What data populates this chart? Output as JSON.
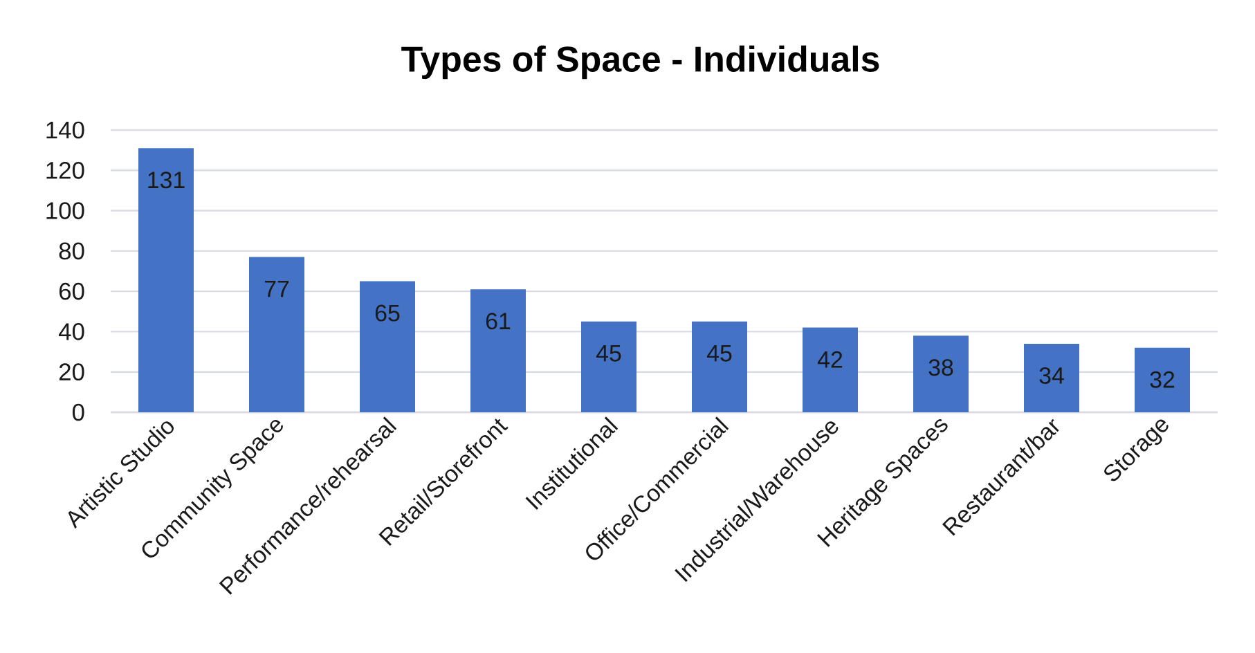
{
  "chart_data": {
    "type": "bar",
    "title": "Types of Space - Individuals",
    "categories": [
      "Artistic Studio",
      "Community Space",
      "Performance/rehearsal",
      "Retail/Storefront",
      "Institutional",
      "Office/Commercial",
      "Industrial/Warehouse",
      "Heritage Spaces",
      "Restaurant/bar",
      "Storage"
    ],
    "values": [
      131,
      77,
      65,
      61,
      45,
      45,
      42,
      38,
      34,
      32
    ],
    "color": "#4472c4",
    "ylim": [
      0,
      140
    ],
    "yticks": [
      0,
      20,
      40,
      60,
      80,
      100,
      120,
      140
    ],
    "grid": "y",
    "data_labels": true
  }
}
